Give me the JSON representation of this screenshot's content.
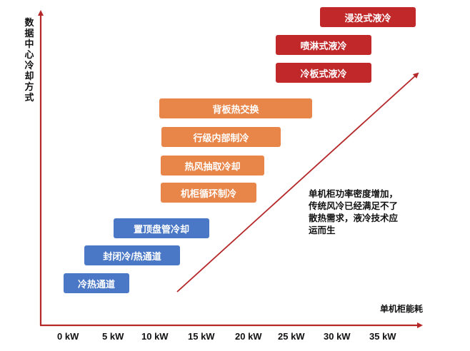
{
  "axes": {
    "y_label": "数据中心冷却方式",
    "x_label": "单机柜能耗",
    "ticks": [
      "0 kW",
      "5 kW",
      "10 kW",
      "15 kW",
      "20 kW",
      "25 kW",
      "30 kW",
      "35 kW"
    ],
    "axis_color": "#b5282a"
  },
  "liquid_cooling": {
    "color": "#c0282a",
    "items": [
      {
        "label": "浸没式液冷",
        "range_kw": [
          28,
          38
        ]
      },
      {
        "label": "喷淋式液冷",
        "range_kw": [
          25,
          34.5
        ]
      },
      {
        "label": "冷板式液冷",
        "range_kw": [
          25,
          34.5
        ]
      }
    ]
  },
  "in_row_cooling": {
    "color": "#e8864a",
    "items": [
      {
        "label": "背板热交换",
        "range_kw": [
          10,
          28
        ]
      },
      {
        "label": "行级内部制冷",
        "range_kw": [
          10,
          23.5
        ]
      },
      {
        "label": "热风抽取冷却",
        "range_kw": [
          10,
          22
        ]
      },
      {
        "label": "机柜循环制冷",
        "range_kw": [
          10,
          21
        ]
      }
    ]
  },
  "room_cooling": {
    "color": "#4a78c6",
    "items": [
      {
        "label": "置顶盘管冷却",
        "range_kw": [
          6,
          16
        ]
      },
      {
        "label": "封闭冷/热通道",
        "range_kw": [
          3,
          14
        ]
      },
      {
        "label": "冷热通道",
        "range_kw": [
          0,
          7
        ]
      }
    ]
  },
  "annotation": "单机柜功率密度增加，传统风冷已经满足不了散热需求，液冷技术应运而生"
}
